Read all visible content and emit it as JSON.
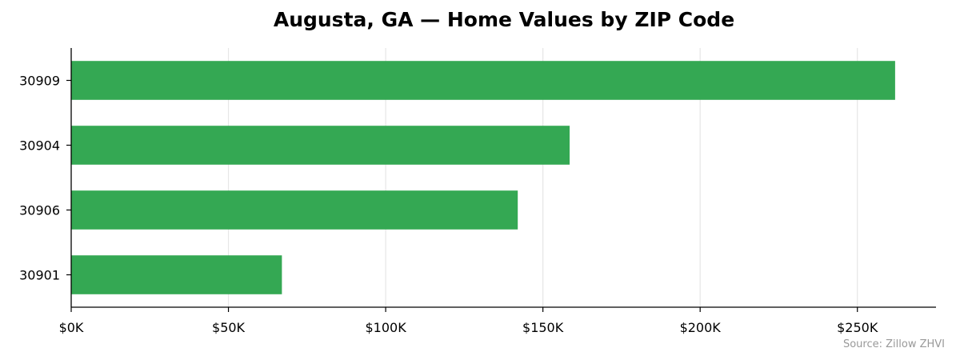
{
  "chart_data": {
    "type": "bar",
    "orientation": "horizontal",
    "title": "Augusta, GA — Home Values by ZIP Code",
    "categories": [
      "30909",
      "30904",
      "30906",
      "30901"
    ],
    "values": [
      262000,
      158500,
      142000,
      67000
    ],
    "xlabel": "",
    "ylabel": "",
    "xlim": [
      0,
      275000
    ],
    "x_ticks": [
      0,
      50000,
      100000,
      150000,
      200000,
      250000
    ],
    "x_tick_labels": [
      "$0K",
      "$50K",
      "$100K",
      "$150K",
      "$200K",
      "$250K"
    ],
    "grid": "x",
    "legend": "none",
    "bar_color": "#34a853",
    "source": "Source: Zillow ZHVI"
  }
}
